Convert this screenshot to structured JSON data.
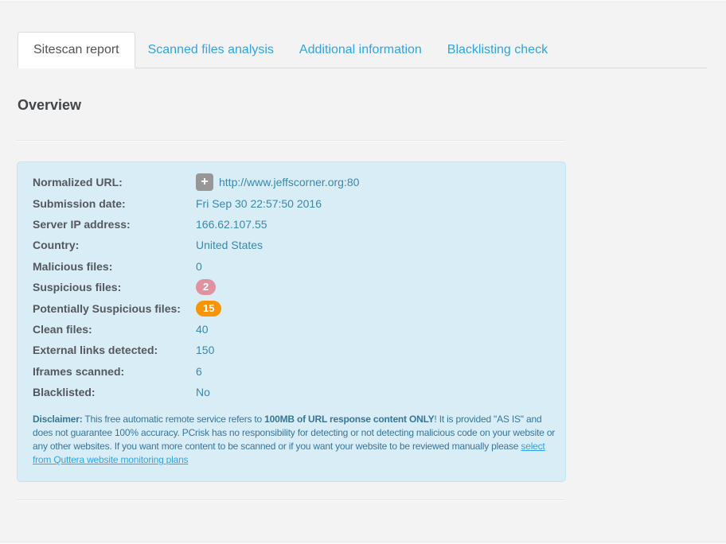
{
  "tabs": [
    {
      "label": "Sitescan report",
      "active": true
    },
    {
      "label": "Scanned files analysis",
      "active": false
    },
    {
      "label": "Additional information",
      "active": false
    },
    {
      "label": "Blacklisting check",
      "active": false
    }
  ],
  "section": {
    "title": "Overview"
  },
  "icons": {
    "plus": "+"
  },
  "overview": {
    "rows": [
      {
        "label": "Normalized URL:",
        "value": "http://www.jeffscorner.org:80"
      },
      {
        "label": "Submission date:",
        "value": "Fri Sep 30 22:57:50 2016"
      },
      {
        "label": "Server IP address:",
        "value": "166.62.107.55"
      },
      {
        "label": "Country:",
        "value": "United States"
      },
      {
        "label": "Malicious files:",
        "value": "0"
      },
      {
        "label": "Suspicious files:",
        "value": "2",
        "badge": "pink"
      },
      {
        "label": "Potentially Suspicious files:",
        "value": "15",
        "badge": "orange"
      },
      {
        "label": "Clean files:",
        "value": "40"
      },
      {
        "label": "External links detected:",
        "value": "150"
      },
      {
        "label": "Iframes scanned:",
        "value": "6"
      },
      {
        "label": "Blacklisted:",
        "value": "No"
      }
    ],
    "disclaimer": {
      "label": "Disclaimer:",
      "text_1": " This free automatic remote service refers to ",
      "bold_phrase": "100MB of URL response content ONLY",
      "text_2": "! It is provided \"AS IS\" and does not guarantee 100% accuracy. PCrisk has no responsibility for detecting or not detecting malicious code on your website or any other websites. If you want more content to be scanned or if you want your website to be reviewed manually please ",
      "link_text": "select from Quttera website monitoring plans"
    }
  },
  "colors": {
    "page_background": "#f3f3f3",
    "tab_link_blue": "#2fa4e7",
    "active_tab_text": "#535353",
    "info_box_background": "#d9edf7",
    "info_box_border": "#bce8f1",
    "value_blue": "#3a87ad",
    "label_gray": "#54585c",
    "badge_pink": "#e0939e",
    "badge_orange": "#f89406",
    "plus_button_gray": "#979797"
  }
}
